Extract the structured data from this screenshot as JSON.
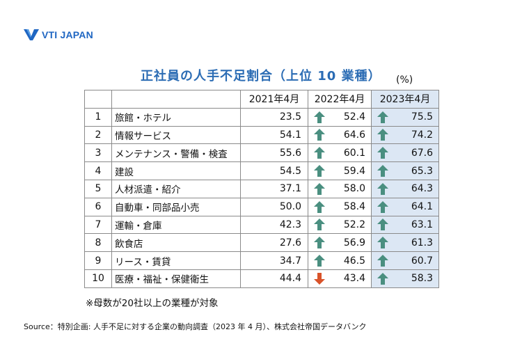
{
  "logo": {
    "text": "VTI JAPAN",
    "color": "#1f66c2"
  },
  "unit": "(%)",
  "note": "※母数が20社以上の業種が対象",
  "source": "Source：特別企画: 人手不足に対する企業の動向調査（2023 年 4 月）、株式会社帝国データバンク",
  "colors": {
    "up": "#4a8f80",
    "down": "#d9532a",
    "highlight": "#dce7f4",
    "title": "#2b6cb4"
  },
  "chart_data": {
    "type": "table",
    "title": "正社員の人手不足割合（上位 10 業種）",
    "columns": [
      "2021年4月",
      "2022年4月",
      "2023年4月"
    ],
    "rows": [
      {
        "rank": "1",
        "industry": "旅館・ホテル",
        "v2021": "23.5",
        "v2022": "52.4",
        "t2022": "up",
        "v2023": "75.5",
        "t2023": "up"
      },
      {
        "rank": "2",
        "industry": "情報サービス",
        "v2021": "54.1",
        "v2022": "64.6",
        "t2022": "up",
        "v2023": "74.2",
        "t2023": "up"
      },
      {
        "rank": "3",
        "industry": "メンテナンス・警備・検査",
        "v2021": "55.6",
        "v2022": "60.1",
        "t2022": "up",
        "v2023": "67.6",
        "t2023": "up"
      },
      {
        "rank": "4",
        "industry": "建設",
        "v2021": "54.5",
        "v2022": "59.4",
        "t2022": "up",
        "v2023": "65.3",
        "t2023": "up"
      },
      {
        "rank": "5",
        "industry": "人材派遣・紹介",
        "v2021": "37.1",
        "v2022": "58.0",
        "t2022": "up",
        "v2023": "64.3",
        "t2023": "up"
      },
      {
        "rank": "6",
        "industry": "自動車・同部品小売",
        "v2021": "50.0",
        "v2022": "58.4",
        "t2022": "up",
        "v2023": "64.1",
        "t2023": "up"
      },
      {
        "rank": "7",
        "industry": "運輸・倉庫",
        "v2021": "42.3",
        "v2022": "52.2",
        "t2022": "up",
        "v2023": "63.1",
        "t2023": "up"
      },
      {
        "rank": "8",
        "industry": "飲食店",
        "v2021": "27.6",
        "v2022": "56.9",
        "t2022": "up",
        "v2023": "61.3",
        "t2023": "up"
      },
      {
        "rank": "9",
        "industry": "リース・賃貸",
        "v2021": "34.7",
        "v2022": "46.5",
        "t2022": "up",
        "v2023": "60.7",
        "t2023": "up"
      },
      {
        "rank": "10",
        "industry": "医療・福祉・保健衛生",
        "v2021": "44.4",
        "v2022": "43.4",
        "t2022": "down",
        "v2023": "58.3",
        "t2023": "up"
      }
    ]
  }
}
